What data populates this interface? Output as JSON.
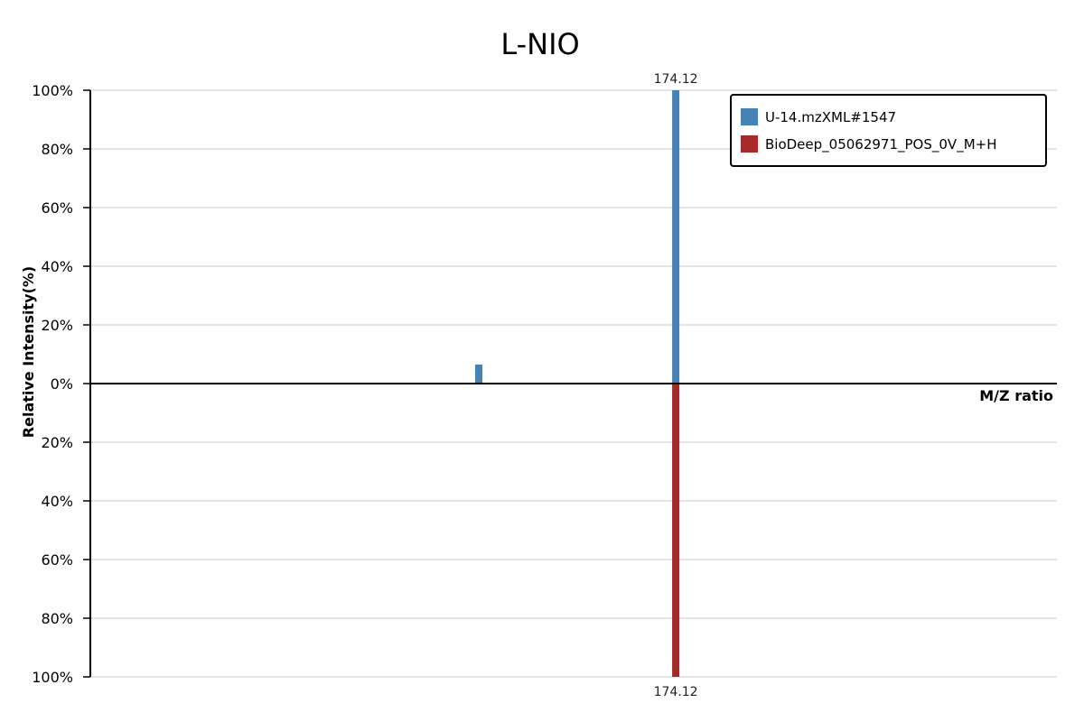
{
  "chart_data": {
    "type": "bar",
    "title": "L-NIO",
    "ylabel": "Relative Intensity(%)",
    "xlabel": "M/Z ratio",
    "ylim": [
      -100,
      100
    ],
    "xlim": [
      76,
      238
    ],
    "yticks": [
      {
        "value": 100,
        "label": "100%"
      },
      {
        "value": 80,
        "label": "80%"
      },
      {
        "value": 60,
        "label": "60%"
      },
      {
        "value": 40,
        "label": "40%"
      },
      {
        "value": 20,
        "label": "20%"
      },
      {
        "value": 0,
        "label": "0%"
      },
      {
        "value": -20,
        "label": "20%"
      },
      {
        "value": -40,
        "label": "40%"
      },
      {
        "value": -60,
        "label": "60%"
      },
      {
        "value": -80,
        "label": "80%"
      },
      {
        "value": -100,
        "label": "100%"
      }
    ],
    "grid": true,
    "legend_position": "top-right",
    "series": [
      {
        "name": "U-14.mzXML#1547",
        "color": "#4682b4",
        "direction": "up",
        "peaks": [
          {
            "mz": 141.1,
            "intensity": 6.5,
            "label": ""
          },
          {
            "mz": 174.12,
            "intensity": 100,
            "label": "174.12"
          }
        ]
      },
      {
        "name": "BioDeep_05062971_POS_0V_M+H",
        "color": "#a52a2a",
        "direction": "down",
        "peaks": [
          {
            "mz": 174.12,
            "intensity": 100,
            "label": "174.12"
          }
        ]
      }
    ]
  }
}
